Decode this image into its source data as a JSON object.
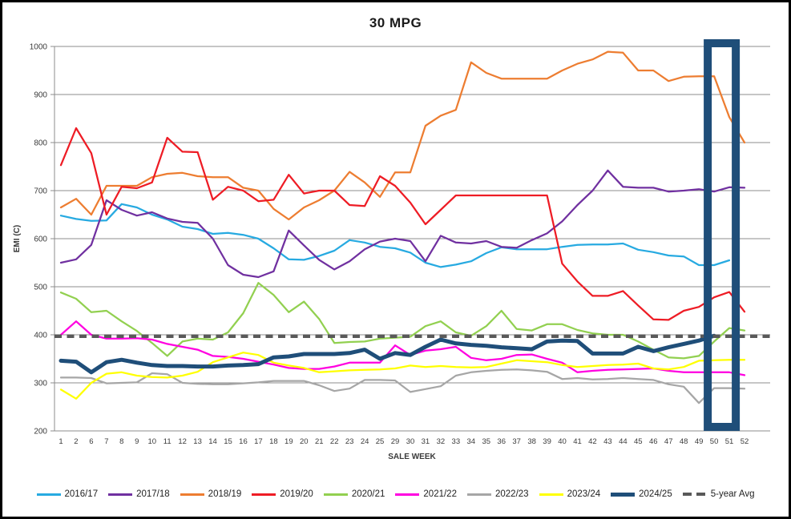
{
  "window": {
    "title": "30 MPG chart"
  },
  "chart_data": {
    "type": "line",
    "title": "30 MPG",
    "xlabel": "SALE WEEK",
    "ylabel": "EMI (C)",
    "ylim": [
      200,
      1000
    ],
    "ytick_step": 100,
    "grid": "horizontal",
    "legend_position": "bottom",
    "categories": [
      "1",
      "2",
      "6",
      "7",
      "8",
      "9",
      "10",
      "11",
      "12",
      "13",
      "14",
      "15",
      "16",
      "17",
      "18",
      "19",
      "20",
      "21",
      "22",
      "23",
      "24",
      "25",
      "29",
      "30",
      "31",
      "32",
      "33",
      "34",
      "35",
      "36",
      "37",
      "38",
      "39",
      "40",
      "41",
      "42",
      "43",
      "44",
      "45",
      "46",
      "47",
      "48",
      "49",
      "50",
      "51",
      "52"
    ],
    "series": [
      {
        "name": "2016/17",
        "color": "#27AAE1",
        "width": 2.25,
        "values": [
          648,
          641,
          637,
          638,
          672,
          665,
          650,
          640,
          625,
          620,
          610,
          612,
          608,
          600,
          580,
          557,
          556,
          564,
          575,
          597,
          592,
          583,
          580,
          571,
          550,
          541,
          546,
          553,
          570,
          582,
          578,
          578,
          578,
          583,
          587,
          588,
          588,
          590,
          577,
          572,
          565,
          563,
          545,
          545,
          555,
          null
        ]
      },
      {
        "name": "2017/18",
        "color": "#7030A0",
        "width": 2.25,
        "values": [
          550,
          557,
          587,
          680,
          660,
          648,
          655,
          642,
          635,
          633,
          600,
          545,
          525,
          520,
          532,
          617,
          586,
          556,
          536,
          553,
          578,
          594,
          600,
          595,
          553,
          606,
          592,
          590,
          595,
          583,
          581,
          597,
          611,
          636,
          670,
          700,
          742,
          708,
          706,
          706,
          698,
          700,
          703,
          698,
          707,
          706
        ]
      },
      {
        "name": "2018/19",
        "color": "#ED7D31",
        "width": 2.25,
        "values": [
          665,
          683,
          650,
          710,
          710,
          710,
          728,
          735,
          737,
          730,
          728,
          728,
          706,
          700,
          662,
          640,
          665,
          680,
          700,
          739,
          717,
          687,
          738,
          738,
          835,
          856,
          868,
          967,
          945,
          933,
          933,
          933,
          933,
          950,
          964,
          973,
          989,
          987,
          950,
          950,
          928,
          937,
          938,
          938,
          853,
          800
        ]
      },
      {
        "name": "2019/20",
        "color": "#EE1C25",
        "width": 2.25,
        "values": [
          753,
          830,
          778,
          650,
          708,
          705,
          717,
          810,
          781,
          780,
          681,
          708,
          700,
          678,
          681,
          733,
          694,
          700,
          700,
          670,
          668,
          730,
          710,
          675,
          630,
          660,
          690,
          690,
          690,
          690,
          690,
          690,
          690,
          548,
          511,
          481,
          481,
          491,
          461,
          432,
          431,
          450,
          458,
          478,
          489,
          448
        ]
      },
      {
        "name": "2020/21",
        "color": "#92D050",
        "width": 2.25,
        "values": [
          488,
          475,
          447,
          450,
          428,
          408,
          383,
          356,
          386,
          392,
          390,
          405,
          445,
          508,
          483,
          447,
          469,
          433,
          383,
          385,
          386,
          392,
          394,
          396,
          418,
          428,
          405,
          398,
          418,
          450,
          412,
          409,
          422,
          422,
          410,
          403,
          400,
          400,
          386,
          369,
          353,
          351,
          356,
          386,
          414,
          409
        ]
      },
      {
        "name": "2021/22",
        "color": "#FF00E0",
        "width": 2.25,
        "values": [
          400,
          428,
          400,
          392,
          392,
          393,
          390,
          381,
          375,
          369,
          356,
          354,
          350,
          344,
          338,
          331,
          329,
          329,
          334,
          342,
          342,
          342,
          378,
          358,
          367,
          370,
          375,
          352,
          347,
          350,
          358,
          359,
          350,
          342,
          322,
          325,
          327,
          328,
          329,
          330,
          325,
          322,
          322,
          322,
          322,
          316
        ]
      },
      {
        "name": "2022/23",
        "color": "#A6A6A6",
        "width": 2.25,
        "values": [
          311,
          311,
          310,
          299,
          300,
          301,
          320,
          318,
          300,
          298,
          297,
          297,
          299,
          301,
          304,
          304,
          304,
          295,
          283,
          288,
          306,
          306,
          305,
          281,
          287,
          293,
          315,
          322,
          325,
          327,
          328,
          326,
          323,
          308,
          310,
          307,
          308,
          310,
          308,
          306,
          297,
          292,
          258,
          289,
          289,
          288
        ]
      },
      {
        "name": "2023/24",
        "color": "#FFFF00",
        "width": 2.25,
        "values": [
          286,
          267,
          300,
          319,
          322,
          315,
          312,
          311,
          315,
          323,
          343,
          353,
          363,
          358,
          342,
          336,
          331,
          322,
          324,
          326,
          327,
          328,
          330,
          336,
          333,
          335,
          333,
          332,
          333,
          340,
          347,
          345,
          343,
          337,
          333,
          335,
          337,
          338,
          340,
          330,
          328,
          333,
          346,
          347,
          348,
          348
        ]
      },
      {
        "name": "2024/25",
        "color": "#1F4E79",
        "width": 5,
        "values": [
          346,
          344,
          322,
          343,
          348,
          342,
          337,
          335,
          335,
          334,
          334,
          336,
          337,
          339,
          353,
          355,
          360,
          360,
          360,
          362,
          369,
          350,
          362,
          358,
          375,
          390,
          382,
          379,
          377,
          374,
          372,
          370,
          386,
          388,
          387,
          361,
          361,
          361,
          375,
          366,
          374,
          381,
          388,
          398,
          null,
          null
        ]
      }
    ],
    "avg_line": {
      "name": "5-year Avg",
      "color": "#595959",
      "value": 397,
      "width": 4.5,
      "dash": "9 6.5"
    },
    "annotation_box": {
      "label": "highlight weeks 50-51",
      "color": "#1F4E79",
      "week_start": "50",
      "week_end": "51"
    },
    "axis_color": "#8C8C8C",
    "tick_label_color": "#3A3A3A"
  }
}
